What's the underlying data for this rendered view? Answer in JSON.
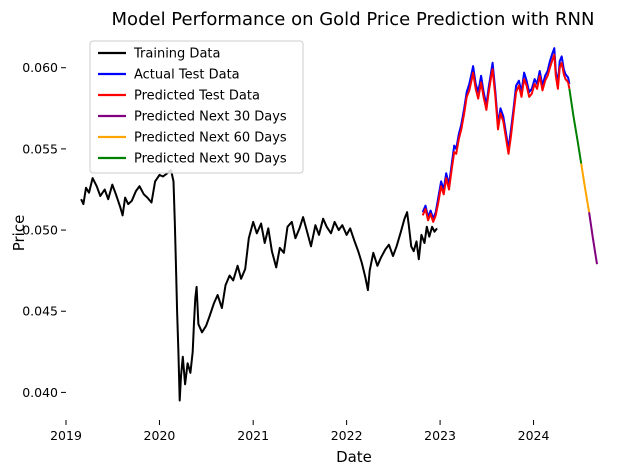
{
  "chart_data": {
    "type": "line",
    "title": "Model Performance on Gold Price Prediction with RNN",
    "xlabel": "Date",
    "ylabel": "Price",
    "xlim": [
      "2019-01-01",
      "2024-12-31"
    ],
    "ylim": [
      0.0383,
      0.0622
    ],
    "x_ticks": [
      "2019",
      "2020",
      "2021",
      "2022",
      "2023",
      "2024"
    ],
    "y_ticks": [
      0.04,
      0.045,
      0.05,
      0.055,
      0.06
    ],
    "y_tick_labels": [
      "0.040",
      "0.045",
      "0.050",
      "0.055",
      "0.060"
    ],
    "grid": false,
    "legend_position": "top-left",
    "series": [
      {
        "name": "Training Data",
        "color": "#000000",
        "points": [
          [
            "2019-03-01",
            0.0519
          ],
          [
            "2019-03-10",
            0.0516
          ],
          [
            "2019-03-20",
            0.0526
          ],
          [
            "2019-04-01",
            0.0523
          ],
          [
            "2019-04-15",
            0.0532
          ],
          [
            "2019-05-01",
            0.0527
          ],
          [
            "2019-05-15",
            0.0521
          ],
          [
            "2019-06-01",
            0.0525
          ],
          [
            "2019-06-15",
            0.0519
          ],
          [
            "2019-07-01",
            0.0528
          ],
          [
            "2019-07-15",
            0.0522
          ],
          [
            "2019-08-01",
            0.0514
          ],
          [
            "2019-08-10",
            0.0509
          ],
          [
            "2019-08-20",
            0.052
          ],
          [
            "2019-09-01",
            0.0516
          ],
          [
            "2019-09-15",
            0.0518
          ],
          [
            "2019-10-01",
            0.0524
          ],
          [
            "2019-10-15",
            0.0527
          ],
          [
            "2019-11-01",
            0.0522
          ],
          [
            "2019-11-15",
            0.052
          ],
          [
            "2019-12-01",
            0.0517
          ],
          [
            "2019-12-15",
            0.053
          ],
          [
            "2020-01-01",
            0.0534
          ],
          [
            "2020-01-15",
            0.0533
          ],
          [
            "2020-02-01",
            0.0535
          ],
          [
            "2020-02-15",
            0.0537
          ],
          [
            "2020-02-25",
            0.053
          ],
          [
            "2020-03-01",
            0.0505
          ],
          [
            "2020-03-05",
            0.0482
          ],
          [
            "2020-03-10",
            0.045
          ],
          [
            "2020-03-15",
            0.0425
          ],
          [
            "2020-03-20",
            0.0395
          ],
          [
            "2020-03-25",
            0.041
          ],
          [
            "2020-04-01",
            0.0422
          ],
          [
            "2020-04-10",
            0.0405
          ],
          [
            "2020-04-20",
            0.0418
          ],
          [
            "2020-05-01",
            0.0412
          ],
          [
            "2020-05-10",
            0.0425
          ],
          [
            "2020-05-15",
            0.0443
          ],
          [
            "2020-05-20",
            0.0458
          ],
          [
            "2020-05-25",
            0.0465
          ],
          [
            "2020-06-01",
            0.0442
          ],
          [
            "2020-06-15",
            0.0437
          ],
          [
            "2020-07-01",
            0.0441
          ],
          [
            "2020-07-15",
            0.0447
          ],
          [
            "2020-08-01",
            0.0455
          ],
          [
            "2020-08-15",
            0.046
          ],
          [
            "2020-09-01",
            0.0452
          ],
          [
            "2020-09-15",
            0.0466
          ],
          [
            "2020-10-01",
            0.0472
          ],
          [
            "2020-10-15",
            0.0469
          ],
          [
            "2020-11-01",
            0.0478
          ],
          [
            "2020-11-15",
            0.047
          ],
          [
            "2020-12-01",
            0.0476
          ],
          [
            "2020-12-15",
            0.0495
          ],
          [
            "2021-01-01",
            0.0505
          ],
          [
            "2021-01-15",
            0.0498
          ],
          [
            "2021-02-01",
            0.0504
          ],
          [
            "2021-02-15",
            0.0492
          ],
          [
            "2021-03-01",
            0.0501
          ],
          [
            "2021-03-15",
            0.0487
          ],
          [
            "2021-04-01",
            0.0477
          ],
          [
            "2021-04-15",
            0.0489
          ],
          [
            "2021-05-01",
            0.0486
          ],
          [
            "2021-05-15",
            0.0502
          ],
          [
            "2021-06-01",
            0.0505
          ],
          [
            "2021-06-15",
            0.0495
          ],
          [
            "2021-07-01",
            0.0501
          ],
          [
            "2021-07-15",
            0.0508
          ],
          [
            "2021-08-01",
            0.0498
          ],
          [
            "2021-08-15",
            0.049
          ],
          [
            "2021-09-01",
            0.0503
          ],
          [
            "2021-09-15",
            0.0497
          ],
          [
            "2021-10-01",
            0.0507
          ],
          [
            "2021-10-15",
            0.0502
          ],
          [
            "2021-11-01",
            0.0498
          ],
          [
            "2021-11-15",
            0.0505
          ],
          [
            "2021-12-01",
            0.05
          ],
          [
            "2021-12-15",
            0.0503
          ],
          [
            "2022-01-01",
            0.0497
          ],
          [
            "2022-01-15",
            0.0501
          ],
          [
            "2022-02-01",
            0.0493
          ],
          [
            "2022-02-15",
            0.0487
          ],
          [
            "2022-03-01",
            0.048
          ],
          [
            "2022-03-15",
            0.0471
          ],
          [
            "2022-03-25",
            0.0463
          ],
          [
            "2022-04-01",
            0.0475
          ],
          [
            "2022-04-15",
            0.0486
          ],
          [
            "2022-05-01",
            0.0478
          ],
          [
            "2022-05-15",
            0.0483
          ],
          [
            "2022-06-01",
            0.0488
          ],
          [
            "2022-06-15",
            0.0491
          ],
          [
            "2022-07-01",
            0.0484
          ],
          [
            "2022-07-15",
            0.049
          ],
          [
            "2022-08-01",
            0.0499
          ],
          [
            "2022-08-15",
            0.0507
          ],
          [
            "2022-08-25",
            0.0511
          ],
          [
            "2022-09-01",
            0.0503
          ],
          [
            "2022-09-10",
            0.049
          ],
          [
            "2022-09-20",
            0.0487
          ],
          [
            "2022-10-01",
            0.0493
          ],
          [
            "2022-10-10",
            0.0482
          ],
          [
            "2022-10-20",
            0.0497
          ],
          [
            "2022-11-01",
            0.0492
          ],
          [
            "2022-11-10",
            0.0502
          ],
          [
            "2022-11-20",
            0.0496
          ],
          [
            "2022-12-01",
            0.0502
          ],
          [
            "2022-12-10",
            0.0499
          ],
          [
            "2022-12-20",
            0.0501
          ]
        ]
      },
      {
        "name": "Actual Test Data",
        "color": "#0000ff",
        "points": [
          [
            "2022-10-25",
            0.0511
          ],
          [
            "2022-11-05",
            0.0515
          ],
          [
            "2022-11-15",
            0.0508
          ],
          [
            "2022-11-25",
            0.0512
          ],
          [
            "2022-12-05",
            0.0507
          ],
          [
            "2022-12-15",
            0.0511
          ],
          [
            "2022-12-25",
            0.052
          ],
          [
            "2023-01-05",
            0.053
          ],
          [
            "2023-01-15",
            0.0525
          ],
          [
            "2023-01-25",
            0.0535
          ],
          [
            "2023-02-05",
            0.0528
          ],
          [
            "2023-02-15",
            0.054
          ],
          [
            "2023-02-25",
            0.0552
          ],
          [
            "2023-03-05",
            0.055
          ],
          [
            "2023-03-15",
            0.0559
          ],
          [
            "2023-03-25",
            0.0565
          ],
          [
            "2023-04-05",
            0.0575
          ],
          [
            "2023-04-15",
            0.0585
          ],
          [
            "2023-04-25",
            0.059
          ],
          [
            "2023-05-05",
            0.0597
          ],
          [
            "2023-05-10",
            0.0601
          ],
          [
            "2023-05-20",
            0.059
          ],
          [
            "2023-05-30",
            0.0585
          ],
          [
            "2023-06-10",
            0.0595
          ],
          [
            "2023-06-20",
            0.0585
          ],
          [
            "2023-07-01",
            0.0577
          ],
          [
            "2023-07-10",
            0.0588
          ],
          [
            "2023-07-20",
            0.0598
          ],
          [
            "2023-07-25",
            0.0603
          ],
          [
            "2023-08-05",
            0.0585
          ],
          [
            "2023-08-15",
            0.0565
          ],
          [
            "2023-08-25",
            0.0575
          ],
          [
            "2023-09-05",
            0.057
          ],
          [
            "2023-09-15",
            0.056
          ],
          [
            "2023-09-25",
            0.055
          ],
          [
            "2023-10-05",
            0.0562
          ],
          [
            "2023-10-15",
            0.0575
          ],
          [
            "2023-10-25",
            0.0589
          ],
          [
            "2023-11-05",
            0.0592
          ],
          [
            "2023-11-15",
            0.0585
          ],
          [
            "2023-11-25",
            0.0597
          ],
          [
            "2023-12-05",
            0.0592
          ],
          [
            "2023-12-15",
            0.0585
          ],
          [
            "2023-12-25",
            0.0587
          ],
          [
            "2024-01-05",
            0.0593
          ],
          [
            "2024-01-15",
            0.059
          ],
          [
            "2024-01-25",
            0.0598
          ],
          [
            "2024-02-05",
            0.0589
          ],
          [
            "2024-02-15",
            0.0595
          ],
          [
            "2024-02-25",
            0.0598
          ],
          [
            "2024-03-05",
            0.0604
          ],
          [
            "2024-03-15",
            0.0609
          ],
          [
            "2024-03-22",
            0.0612
          ],
          [
            "2024-03-28",
            0.0598
          ],
          [
            "2024-04-05",
            0.059
          ],
          [
            "2024-04-12",
            0.0604
          ],
          [
            "2024-04-20",
            0.0607
          ],
          [
            "2024-04-28",
            0.0599
          ],
          [
            "2024-05-05",
            0.0596
          ],
          [
            "2024-05-15",
            0.0594
          ],
          [
            "2024-05-20",
            0.059
          ]
        ]
      },
      {
        "name": "Predicted Test Data",
        "color": "#ff0000",
        "points": [
          [
            "2022-10-25",
            0.0509
          ],
          [
            "2022-11-05",
            0.0513
          ],
          [
            "2022-11-15",
            0.0506
          ],
          [
            "2022-11-25",
            0.051
          ],
          [
            "2022-12-05",
            0.0505
          ],
          [
            "2022-12-15",
            0.0509
          ],
          [
            "2022-12-25",
            0.0517
          ],
          [
            "2023-01-05",
            0.0527
          ],
          [
            "2023-01-15",
            0.0522
          ],
          [
            "2023-01-25",
            0.0532
          ],
          [
            "2023-02-05",
            0.0525
          ],
          [
            "2023-02-15",
            0.0537
          ],
          [
            "2023-02-25",
            0.0548
          ],
          [
            "2023-03-05",
            0.0547
          ],
          [
            "2023-03-15",
            0.0556
          ],
          [
            "2023-03-25",
            0.0562
          ],
          [
            "2023-04-05",
            0.0572
          ],
          [
            "2023-04-15",
            0.0582
          ],
          [
            "2023-04-25",
            0.0586
          ],
          [
            "2023-05-05",
            0.0593
          ],
          [
            "2023-05-10",
            0.0597
          ],
          [
            "2023-05-20",
            0.0587
          ],
          [
            "2023-05-30",
            0.0581
          ],
          [
            "2023-06-10",
            0.0591
          ],
          [
            "2023-06-20",
            0.0582
          ],
          [
            "2023-07-01",
            0.0574
          ],
          [
            "2023-07-10",
            0.0585
          ],
          [
            "2023-07-20",
            0.0595
          ],
          [
            "2023-07-25",
            0.0599
          ],
          [
            "2023-08-05",
            0.0582
          ],
          [
            "2023-08-15",
            0.0562
          ],
          [
            "2023-08-25",
            0.0572
          ],
          [
            "2023-09-05",
            0.0567
          ],
          [
            "2023-09-15",
            0.0557
          ],
          [
            "2023-09-25",
            0.0547
          ],
          [
            "2023-10-05",
            0.0558
          ],
          [
            "2023-10-15",
            0.0572
          ],
          [
            "2023-10-25",
            0.0585
          ],
          [
            "2023-11-05",
            0.0589
          ],
          [
            "2023-11-15",
            0.0582
          ],
          [
            "2023-11-25",
            0.0593
          ],
          [
            "2023-12-05",
            0.0589
          ],
          [
            "2023-12-15",
            0.0582
          ],
          [
            "2023-12-25",
            0.0584
          ],
          [
            "2024-01-05",
            0.059
          ],
          [
            "2024-01-15",
            0.0587
          ],
          [
            "2024-01-25",
            0.0595
          ],
          [
            "2024-02-05",
            0.0586
          ],
          [
            "2024-02-15",
            0.0592
          ],
          [
            "2024-02-25",
            0.0595
          ],
          [
            "2024-03-05",
            0.06
          ],
          [
            "2024-03-15",
            0.0605
          ],
          [
            "2024-03-22",
            0.0608
          ],
          [
            "2024-03-28",
            0.0595
          ],
          [
            "2024-04-05",
            0.0587
          ],
          [
            "2024-04-12",
            0.06
          ],
          [
            "2024-04-20",
            0.0603
          ],
          [
            "2024-04-28",
            0.0596
          ],
          [
            "2024-05-05",
            0.0593
          ],
          [
            "2024-05-15",
            0.0591
          ],
          [
            "2024-05-20",
            0.0587
          ]
        ]
      },
      {
        "name": "Predicted Next 30 Days",
        "color": "#800080",
        "points": [
          [
            "2024-08-05",
            0.0511
          ],
          [
            "2024-08-20",
            0.0495
          ],
          [
            "2024-09-05",
            0.0479
          ]
        ]
      },
      {
        "name": "Predicted Next 60 Days",
        "color": "#ffa500",
        "points": [
          [
            "2024-07-05",
            0.0541
          ],
          [
            "2024-07-20",
            0.0526
          ],
          [
            "2024-08-05",
            0.0511
          ]
        ]
      },
      {
        "name": "Predicted Next 90 Days",
        "color": "#008000",
        "points": [
          [
            "2024-05-20",
            0.0587
          ],
          [
            "2024-06-05",
            0.057
          ],
          [
            "2024-06-20",
            0.0556
          ],
          [
            "2024-07-05",
            0.0541
          ]
        ]
      }
    ]
  }
}
